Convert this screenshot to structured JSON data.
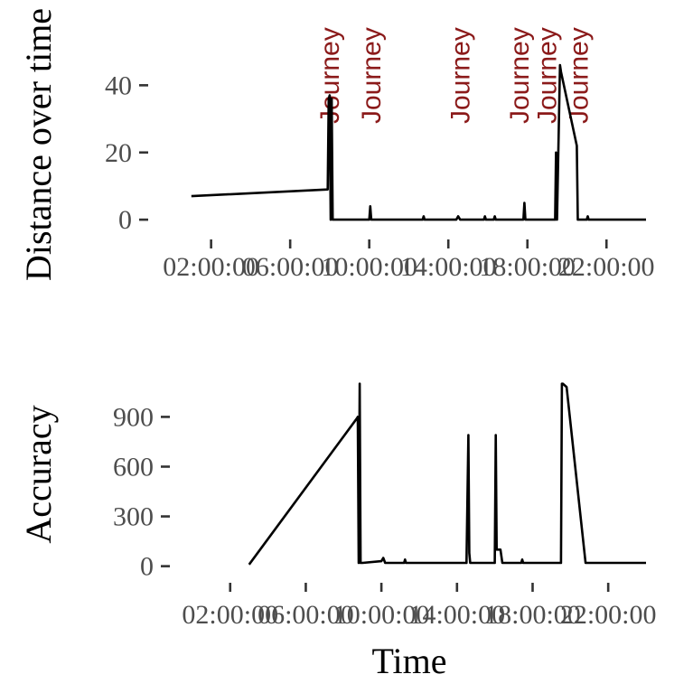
{
  "chart_data": [
    {
      "type": "line",
      "ylabel": "Distance over time",
      "xlabel": "",
      "x_ticks": [
        "02:00:00",
        "06:00:00",
        "10:00:00",
        "14:00:00",
        "18:00:00",
        "22:00:00"
      ],
      "x_tick_hours": [
        2,
        6,
        10,
        14,
        18,
        22
      ],
      "y_ticks": [
        0,
        20,
        40
      ],
      "xlim": [
        -1.0,
        24.0
      ],
      "ylim": [
        -4,
        60
      ],
      "annotation_label": "Journey",
      "annotations_x": [
        8.0,
        10.1,
        14.6,
        17.6,
        19.0,
        20.6
      ],
      "series": [
        {
          "x": [
            1.0,
            7.9,
            7.95,
            8.0,
            8.05,
            8.1,
            8.15,
            10.0,
            10.05,
            10.1,
            12.7,
            12.75,
            12.8,
            14.4,
            14.5,
            14.6,
            15.8,
            15.85,
            15.9,
            16.3,
            16.35,
            16.4,
            17.8,
            17.85,
            17.9,
            19.4,
            19.45,
            19.5,
            19.65,
            19.7,
            20.5,
            20.55,
            20.6,
            21.0,
            21.05,
            21.1,
            24.0
          ],
          "y": [
            7,
            9,
            36,
            37,
            0,
            36,
            0,
            0,
            4,
            0,
            0,
            1,
            0,
            0,
            1,
            0,
            0,
            1,
            0,
            0,
            1,
            0,
            0,
            5,
            0,
            0,
            20,
            0,
            46,
            44,
            22,
            0,
            0,
            0,
            1,
            0,
            0
          ]
        }
      ]
    },
    {
      "type": "line",
      "ylabel": "Accuracy",
      "xlabel": "Time",
      "x_ticks": [
        "02:00:00",
        "06:00:00",
        "10:00:00",
        "14:00:00",
        "18:00:00",
        "22:00:00"
      ],
      "x_tick_hours": [
        2,
        6,
        10,
        14,
        18,
        22
      ],
      "y_ticks": [
        0,
        300,
        600,
        900
      ],
      "xlim": [
        -1.0,
        24.0
      ],
      "ylim": [
        -100,
        1180
      ],
      "series": [
        {
          "x": [
            3.0,
            8.7,
            8.75,
            8.8,
            8.85,
            8.9,
            8.95,
            9.0,
            10.0,
            10.1,
            10.2,
            11.2,
            11.25,
            11.3,
            14.5,
            14.6,
            14.65,
            14.7,
            16.0,
            16.05,
            16.1,
            16.3,
            16.4,
            16.5,
            17.4,
            17.45,
            17.5,
            19.5,
            19.55,
            19.6,
            19.8,
            20.8,
            24.0
          ],
          "y": [
            10,
            890,
            900,
            20,
            1100,
            20,
            20,
            20,
            30,
            50,
            20,
            20,
            40,
            20,
            20,
            790,
            80,
            20,
            20,
            790,
            100,
            100,
            20,
            20,
            20,
            40,
            20,
            20,
            1100,
            1100,
            1080,
            20,
            20
          ]
        }
      ]
    }
  ]
}
